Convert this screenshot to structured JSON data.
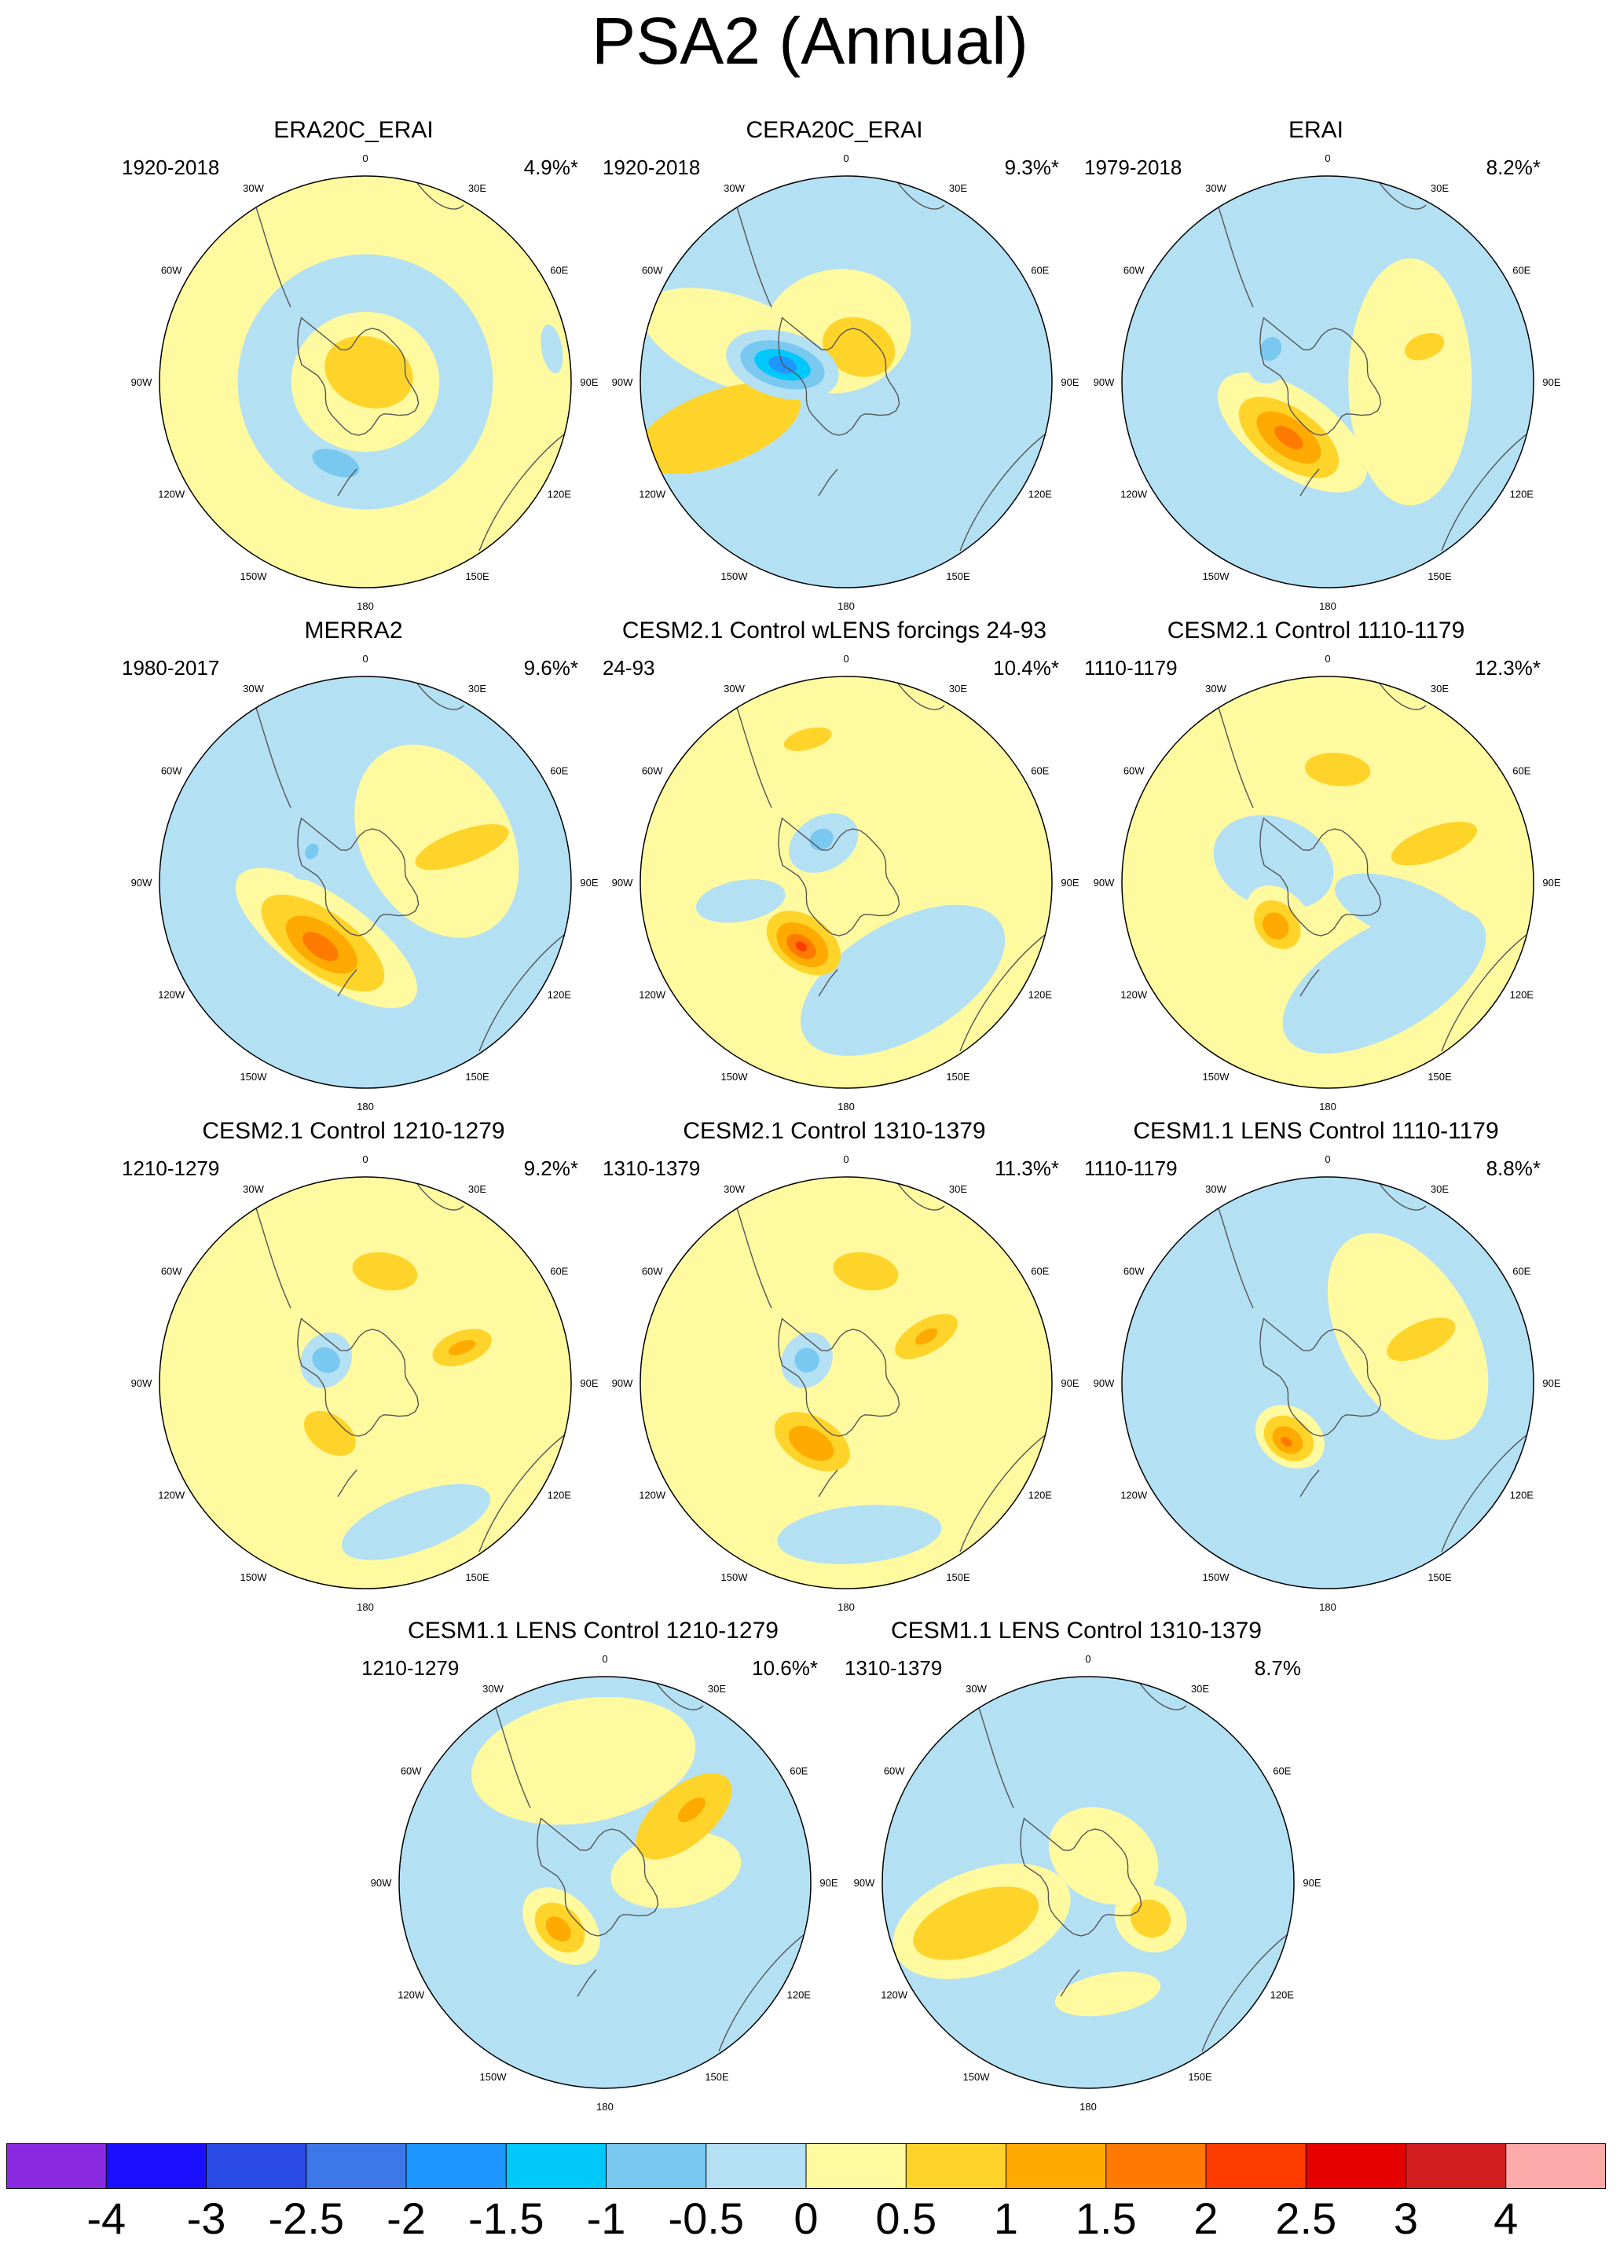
{
  "figure": {
    "title": "PSA2 (Annual)"
  },
  "chart_data": {
    "type": "heatmap",
    "title": "PSA2 (Annual)",
    "projection": "south-polar-stereographic",
    "longitude_labels": [
      "0",
      "30E",
      "60E",
      "90E",
      "120E",
      "150E",
      "180",
      "150W",
      "120W",
      "90W",
      "60W",
      "30W"
    ],
    "colorbar": {
      "levels": [
        -4,
        -3,
        -2.5,
        -2,
        -1.5,
        -1,
        -0.5,
        0,
        0.5,
        1,
        1.5,
        2,
        2.5,
        3,
        4
      ],
      "level_labels": [
        "-4",
        "-3",
        "-2.5",
        "-2",
        "-1.5",
        "-1",
        "-0.5",
        "0",
        "0.5",
        "1",
        "1.5",
        "2",
        "2.5",
        "3",
        "4"
      ],
      "colors": [
        "#8a2be2",
        "#1a10ff",
        "#2a4ae6",
        "#3d78e8",
        "#1e96ff",
        "#00c8fa",
        "#78c8f0",
        "#b4e0f4",
        "#fffaa0",
        "#ffd42a",
        "#ffaa00",
        "#ff7a00",
        "#ff3c00",
        "#e60000",
        "#d21e1e",
        "#ffaaaa"
      ]
    },
    "panels": [
      {
        "title": "ERA20C_ERAI",
        "period": "1920-2018",
        "variance": "4.9%*",
        "background": "#fffaa0",
        "features": [
          {
            "level": -0.5,
            "lon": 0,
            "dist": 0,
            "rx": 0.62,
            "ry": 0.62
          },
          {
            "level": 0,
            "lon": 0,
            "dist": 0,
            "rx": 0.36,
            "ry": 0.34
          },
          {
            "level": 0.5,
            "lon": 20,
            "dist": 0.05,
            "rx": 0.22,
            "ry": 0.17
          },
          {
            "level": -1,
            "lon": 200,
            "dist": 0.42,
            "rx": 0.12,
            "ry": 0.06
          },
          {
            "level": -0.5,
            "lon": 80,
            "dist": 0.92,
            "rx": 0.12,
            "ry": 0.05
          }
        ]
      },
      {
        "title": "CERA20C_ERAI",
        "period": "1920-2018",
        "variance": "9.3%*",
        "background": "#b4e0f4",
        "features": [
          {
            "level": 0,
            "lon": 290,
            "dist": 0.55,
            "rx": 0.22,
            "ry": 0.5
          },
          {
            "level": 0.5,
            "lon": 250,
            "dist": 0.66,
            "rx": 0.18,
            "ry": 0.42
          },
          {
            "level": 0,
            "lon": 350,
            "dist": 0.25,
            "rx": 0.36,
            "ry": 0.3
          },
          {
            "level": 0.5,
            "lon": 20,
            "dist": 0.18,
            "rx": 0.18,
            "ry": 0.14
          },
          {
            "level": -0.5,
            "lon": 285,
            "dist": 0.32,
            "rx": 0.16,
            "ry": 0.28
          },
          {
            "level": -1,
            "lon": 285,
            "dist": 0.32,
            "rx": 0.11,
            "ry": 0.21
          },
          {
            "level": -1.5,
            "lon": 285,
            "dist": 0.32,
            "rx": 0.07,
            "ry": 0.14
          },
          {
            "level": -2,
            "lon": 285,
            "dist": 0.32,
            "rx": 0.04,
            "ry": 0.07
          },
          {
            "level": -0.5,
            "lon": 100,
            "dist": 0.62,
            "rx": 0.12,
            "ry": 0.34
          },
          {
            "level": -0.5,
            "lon": 20,
            "dist": 0.75,
            "rx": 0.12,
            "ry": 0.06
          }
        ]
      },
      {
        "title": "ERAI",
        "period": "1979-2018",
        "variance": "8.2%*",
        "background": "#b4e0f4",
        "features": [
          {
            "level": 0,
            "lon": 90,
            "dist": 0.4,
            "rx": 0.6,
            "ry": 0.3
          },
          {
            "level": 0,
            "lon": 215,
            "dist": 0.3,
            "rx": 0.42,
            "ry": 0.2
          },
          {
            "level": 0.5,
            "lon": 215,
            "dist": 0.33,
            "rx": 0.28,
            "ry": 0.14
          },
          {
            "level": 1,
            "lon": 215,
            "dist": 0.33,
            "rx": 0.18,
            "ry": 0.09
          },
          {
            "level": 1.5,
            "lon": 215,
            "dist": 0.33,
            "rx": 0.08,
            "ry": 0.04
          },
          {
            "level": 0.5,
            "lon": 70,
            "dist": 0.5,
            "rx": 0.06,
            "ry": 0.1
          },
          {
            "level": -0.5,
            "lon": 300,
            "dist": 0.3,
            "rx": 0.17,
            "ry": 0.12
          },
          {
            "level": -1,
            "lon": 300,
            "dist": 0.32,
            "rx": 0.06,
            "ry": 0.05
          },
          {
            "level": -0.5,
            "lon": 180,
            "dist": 0.72,
            "rx": 0.12,
            "ry": 0.05
          }
        ]
      },
      {
        "title": "MERRA2",
        "period": "1980-2017",
        "variance": "9.6%*",
        "background": "#b4e0f4",
        "features": [
          {
            "level": 0,
            "lon": 60,
            "dist": 0.4,
            "rx": 0.5,
            "ry": 0.36
          },
          {
            "level": 0,
            "lon": 215,
            "dist": 0.33,
            "rx": 0.52,
            "ry": 0.2
          },
          {
            "level": 0.5,
            "lon": 215,
            "dist": 0.36,
            "rx": 0.35,
            "ry": 0.15
          },
          {
            "level": 1,
            "lon": 215,
            "dist": 0.37,
            "rx": 0.2,
            "ry": 0.1
          },
          {
            "level": 1.5,
            "lon": 215,
            "dist": 0.38,
            "rx": 0.1,
            "ry": 0.05
          },
          {
            "level": 0.5,
            "lon": 70,
            "dist": 0.5,
            "rx": 0.08,
            "ry": 0.24
          },
          {
            "level": -0.5,
            "lon": 300,
            "dist": 0.3,
            "rx": 0.15,
            "ry": 0.1
          },
          {
            "level": -1,
            "lon": 300,
            "dist": 0.3,
            "rx": 0.04,
            "ry": 0.03
          }
        ]
      },
      {
        "title": "CESM2.1 Control wLENS forcings 24-93",
        "period": "24-93",
        "variance": "10.4%*",
        "background": "#fffaa0",
        "features": [
          {
            "level": -0.5,
            "lon": 150,
            "dist": 0.55,
            "rx": 0.55,
            "ry": 0.28
          },
          {
            "level": -0.5,
            "lon": 260,
            "dist": 0.52,
            "rx": 0.1,
            "ry": 0.22
          },
          {
            "level": 0,
            "lon": 340,
            "dist": 0.18,
            "rx": 0.3,
            "ry": 0.25
          },
          {
            "level": -0.5,
            "lon": 330,
            "dist": 0.22,
            "rx": 0.18,
            "ry": 0.13
          },
          {
            "level": -1,
            "lon": 330,
            "dist": 0.24,
            "rx": 0.06,
            "ry": 0.05
          },
          {
            "level": 0.5,
            "lon": 215,
            "dist": 0.36,
            "rx": 0.2,
            "ry": 0.13
          },
          {
            "level": 1,
            "lon": 215,
            "dist": 0.37,
            "rx": 0.14,
            "ry": 0.09
          },
          {
            "level": 1.5,
            "lon": 215,
            "dist": 0.38,
            "rx": 0.08,
            "ry": 0.05
          },
          {
            "level": 2,
            "lon": 215,
            "dist": 0.38,
            "rx": 0.03,
            "ry": 0.02
          },
          {
            "level": 0.5,
            "lon": 345,
            "dist": 0.72,
            "rx": 0.12,
            "ry": 0.05
          }
        ]
      },
      {
        "title": "CESM2.1 Control 1110-1179",
        "period": "1110-1179",
        "variance": "12.3%*",
        "background": "#fffaa0",
        "features": [
          {
            "level": -0.5,
            "lon": 150,
            "dist": 0.55,
            "rx": 0.55,
            "ry": 0.26
          },
          {
            "level": -0.5,
            "lon": 290,
            "dist": 0.28,
            "rx": 0.22,
            "ry": 0.3
          },
          {
            "level": -0.5,
            "lon": 110,
            "dist": 0.4,
            "rx": 0.14,
            "ry": 0.36
          },
          {
            "level": 0,
            "lon": 230,
            "dist": 0.3,
            "rx": 0.2,
            "ry": 0.14
          },
          {
            "level": 0.5,
            "lon": 230,
            "dist": 0.32,
            "rx": 0.13,
            "ry": 0.1
          },
          {
            "level": 1,
            "lon": 230,
            "dist": 0.33,
            "rx": 0.07,
            "ry": 0.06
          },
          {
            "level": 0.5,
            "lon": 70,
            "dist": 0.55,
            "rx": 0.08,
            "ry": 0.22
          },
          {
            "level": 0.5,
            "lon": 5,
            "dist": 0.55,
            "rx": 0.16,
            "ry": 0.08
          }
        ]
      },
      {
        "title": "CESM2.1 Control 1210-1279",
        "period": "1210-1279",
        "variance": "9.2%*",
        "background": "#fffaa0",
        "features": [
          {
            "level": 0,
            "lon": 0,
            "dist": 0,
            "rx": 0.42,
            "ry": 0.34
          },
          {
            "level": -0.5,
            "lon": 160,
            "dist": 0.72,
            "rx": 0.38,
            "ry": 0.14
          },
          {
            "level": -0.5,
            "lon": 300,
            "dist": 0.22,
            "rx": 0.14,
            "ry": 0.12
          },
          {
            "level": -1,
            "lon": 300,
            "dist": 0.22,
            "rx": 0.06,
            "ry": 0.07
          },
          {
            "level": 0.5,
            "lon": 70,
            "dist": 0.5,
            "rx": 0.08,
            "ry": 0.15
          },
          {
            "level": 1,
            "lon": 70,
            "dist": 0.5,
            "rx": 0.03,
            "ry": 0.07
          },
          {
            "level": 0.5,
            "lon": 215,
            "dist": 0.3,
            "rx": 0.14,
            "ry": 0.09
          },
          {
            "level": 0.5,
            "lon": 10,
            "dist": 0.55,
            "rx": 0.16,
            "ry": 0.09
          }
        ]
      },
      {
        "title": "CESM2.1 Control 1310-1379",
        "period": "1310-1379",
        "variance": "11.3%*",
        "background": "#fffaa0",
        "features": [
          {
            "level": 0,
            "lon": 0,
            "dist": 0,
            "rx": 0.45,
            "ry": 0.36
          },
          {
            "level": -0.5,
            "lon": 175,
            "dist": 0.74,
            "rx": 0.4,
            "ry": 0.14
          },
          {
            "level": -0.5,
            "lon": 300,
            "dist": 0.22,
            "rx": 0.14,
            "ry": 0.12
          },
          {
            "level": -1,
            "lon": 300,
            "dist": 0.22,
            "rx": 0.06,
            "ry": 0.06
          },
          {
            "level": 0.5,
            "lon": 60,
            "dist": 0.45,
            "rx": 0.08,
            "ry": 0.17
          },
          {
            "level": 1,
            "lon": 60,
            "dist": 0.45,
            "rx": 0.03,
            "ry": 0.06
          },
          {
            "level": 0.5,
            "lon": 210,
            "dist": 0.33,
            "rx": 0.2,
            "ry": 0.12
          },
          {
            "level": 1,
            "lon": 210,
            "dist": 0.34,
            "rx": 0.12,
            "ry": 0.07
          },
          {
            "level": 0.5,
            "lon": 10,
            "dist": 0.55,
            "rx": 0.16,
            "ry": 0.09
          }
        ]
      },
      {
        "title": "CESM1.1 LENS Control 1110-1179",
        "period": "1110-1179",
        "variance": "8.8%*",
        "background": "#b4e0f4",
        "features": [
          {
            "level": 0,
            "lon": 60,
            "dist": 0.45,
            "rx": 0.55,
            "ry": 0.32
          },
          {
            "level": 0.5,
            "lon": 65,
            "dist": 0.5,
            "rx": 0.08,
            "ry": 0.18
          },
          {
            "level": 0,
            "lon": 215,
            "dist": 0.32,
            "rx": 0.18,
            "ry": 0.14
          },
          {
            "level": 0.5,
            "lon": 215,
            "dist": 0.33,
            "rx": 0.13,
            "ry": 0.1
          },
          {
            "level": 1,
            "lon": 215,
            "dist": 0.34,
            "rx": 0.08,
            "ry": 0.06
          },
          {
            "level": 1.5,
            "lon": 215,
            "dist": 0.35,
            "rx": 0.03,
            "ry": 0.02
          },
          {
            "level": -0.5,
            "lon": 255,
            "dist": 0.55,
            "rx": 0.06,
            "ry": 0.14
          },
          {
            "level": -0.5,
            "lon": 130,
            "dist": 0.45,
            "rx": 0.05,
            "ry": 0.07
          }
        ]
      },
      {
        "title": "CESM1.1 LENS Control 1210-1279",
        "period": "1210-1279",
        "variance": "10.6%*",
        "background": "#b4e0f4",
        "features": [
          {
            "level": 0,
            "lon": 350,
            "dist": 0.6,
            "rx": 0.55,
            "ry": 0.3
          },
          {
            "level": 0,
            "lon": 80,
            "dist": 0.35,
            "rx": 0.18,
            "ry": 0.32
          },
          {
            "level": 0.5,
            "lon": 50,
            "dist": 0.5,
            "rx": 0.14,
            "ry": 0.28
          },
          {
            "level": 1,
            "lon": 50,
            "dist": 0.55,
            "rx": 0.04,
            "ry": 0.08
          },
          {
            "level": -0.5,
            "lon": 240,
            "dist": 0.4,
            "rx": 0.45,
            "ry": 0.3
          },
          {
            "level": 0,
            "lon": 225,
            "dist": 0.3,
            "rx": 0.22,
            "ry": 0.15
          },
          {
            "level": 0.5,
            "lon": 225,
            "dist": 0.31,
            "rx": 0.14,
            "ry": 0.1
          },
          {
            "level": 1,
            "lon": 225,
            "dist": 0.32,
            "rx": 0.07,
            "ry": 0.05
          }
        ]
      },
      {
        "title": "CESM1.1 LENS Control 1310-1379",
        "period": "1310-1379",
        "variance": "8.7%",
        "background": "#b4e0f4",
        "features": [
          {
            "level": 0,
            "lon": 250,
            "dist": 0.55,
            "rx": 0.25,
            "ry": 0.45
          },
          {
            "level": 0.5,
            "lon": 250,
            "dist": 0.58,
            "rx": 0.15,
            "ry": 0.32
          },
          {
            "level": 0,
            "lon": 30,
            "dist": 0.15,
            "rx": 0.28,
            "ry": 0.22
          },
          {
            "level": 0,
            "lon": 120,
            "dist": 0.35,
            "rx": 0.16,
            "ry": 0.18
          },
          {
            "level": 0.5,
            "lon": 120,
            "dist": 0.35,
            "rx": 0.09,
            "ry": 0.1
          },
          {
            "level": -0.5,
            "lon": 340,
            "dist": 0.45,
            "rx": 0.08,
            "ry": 0.09
          },
          {
            "level": -0.5,
            "lon": 40,
            "dist": 0.5,
            "rx": 0.09,
            "ry": 0.08
          },
          {
            "level": 0,
            "lon": 170,
            "dist": 0.55,
            "rx": 0.26,
            "ry": 0.1
          }
        ]
      }
    ]
  }
}
